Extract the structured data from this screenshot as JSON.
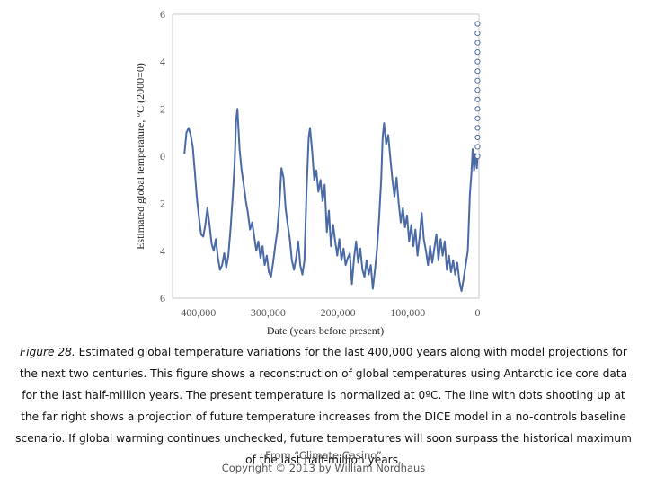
{
  "chart_data": {
    "type": "line",
    "title": "",
    "xlabel": "Date (years before present)",
    "ylabel": "Estimated global temperature, °C (2000=0)",
    "xlim": [
      -440000,
      5000
    ],
    "ylim": [
      -6,
      6
    ],
    "x_ticks": [
      -400000,
      -300000,
      -200000,
      -100000,
      0
    ],
    "x_tick_labels": [
      "400,000",
      "300,000",
      "200,000",
      "100,000",
      "0"
    ],
    "y_ticks": [
      6,
      4,
      2,
      0,
      -2,
      -4,
      -6
    ],
    "y_tick_labels": [
      "6",
      "4",
      "2",
      "0",
      "2",
      "4",
      "6"
    ],
    "grid": false,
    "legend": "none",
    "series": [
      {
        "style": "solid-line",
        "color": "#4a6aa5",
        "points": [
          [
            -420000,
            0.1
          ],
          [
            -417000,
            1.0
          ],
          [
            -414000,
            1.2
          ],
          [
            -411000,
            0.9
          ],
          [
            -408000,
            0.4
          ],
          [
            -405000,
            -0.7
          ],
          [
            -402000,
            -1.8
          ],
          [
            -399000,
            -2.6
          ],
          [
            -396000,
            -3.3
          ],
          [
            -393000,
            -3.4
          ],
          [
            -390000,
            -2.9
          ],
          [
            -387000,
            -2.2
          ],
          [
            -384000,
            -2.9
          ],
          [
            -381000,
            -3.7
          ],
          [
            -378000,
            -4.0
          ],
          [
            -375000,
            -3.5
          ],
          [
            -372000,
            -4.3
          ],
          [
            -369000,
            -4.8
          ],
          [
            -366000,
            -4.6
          ],
          [
            -363000,
            -4.1
          ],
          [
            -360000,
            -4.7
          ],
          [
            -357000,
            -4.2
          ],
          [
            -354000,
            -3.1
          ],
          [
            -351000,
            -1.8
          ],
          [
            -348000,
            -0.3
          ],
          [
            -346000,
            1.5
          ],
          [
            -344000,
            2.0
          ],
          [
            -341000,
            0.3
          ],
          [
            -338000,
            -0.6
          ],
          [
            -335000,
            -1.2
          ],
          [
            -332000,
            -1.9
          ],
          [
            -329000,
            -2.4
          ],
          [
            -326000,
            -3.1
          ],
          [
            -323000,
            -2.8
          ],
          [
            -320000,
            -3.4
          ],
          [
            -317000,
            -4.0
          ],
          [
            -314000,
            -3.6
          ],
          [
            -311000,
            -4.3
          ],
          [
            -308000,
            -3.8
          ],
          [
            -305000,
            -4.6
          ],
          [
            -302000,
            -4.2
          ],
          [
            -299000,
            -4.9
          ],
          [
            -296000,
            -5.1
          ],
          [
            -293000,
            -4.5
          ],
          [
            -290000,
            -3.8
          ],
          [
            -287000,
            -3.2
          ],
          [
            -284000,
            -2.1
          ],
          [
            -281000,
            -0.5
          ],
          [
            -278000,
            -0.9
          ],
          [
            -275000,
            -2.2
          ],
          [
            -272000,
            -2.9
          ],
          [
            -269000,
            -3.5
          ],
          [
            -266000,
            -4.4
          ],
          [
            -263000,
            -4.8
          ],
          [
            -260000,
            -4.3
          ],
          [
            -257000,
            -3.6
          ],
          [
            -254000,
            -4.6
          ],
          [
            -251000,
            -5.0
          ],
          [
            -248000,
            -4.4
          ],
          [
            -245000,
            -1.5
          ],
          [
            -242000,
            0.8
          ],
          [
            -240000,
            1.2
          ],
          [
            -237000,
            0.2
          ],
          [
            -234000,
            -1.0
          ],
          [
            -231000,
            -0.6
          ],
          [
            -228000,
            -1.5
          ],
          [
            -225000,
            -1.0
          ],
          [
            -222000,
            -1.9
          ],
          [
            -219000,
            -1.2
          ],
          [
            -216000,
            -3.2
          ],
          [
            -213000,
            -2.3
          ],
          [
            -210000,
            -3.8
          ],
          [
            -207000,
            -2.9
          ],
          [
            -204000,
            -3.6
          ],
          [
            -201000,
            -4.2
          ],
          [
            -198000,
            -3.5
          ],
          [
            -195000,
            -4.4
          ],
          [
            -192000,
            -3.9
          ],
          [
            -189000,
            -4.6
          ],
          [
            -186000,
            -4.3
          ],
          [
            -183000,
            -4.1
          ],
          [
            -180000,
            -5.4
          ],
          [
            -177000,
            -4.3
          ],
          [
            -174000,
            -3.6
          ],
          [
            -171000,
            -4.5
          ],
          [
            -168000,
            -3.9
          ],
          [
            -165000,
            -4.8
          ],
          [
            -162000,
            -5.1
          ],
          [
            -159000,
            -4.4
          ],
          [
            -156000,
            -5.0
          ],
          [
            -153000,
            -4.6
          ],
          [
            -150000,
            -5.6
          ],
          [
            -147000,
            -4.8
          ],
          [
            -144000,
            -3.9
          ],
          [
            -141000,
            -2.6
          ],
          [
            -138000,
            -0.9
          ],
          [
            -136000,
            0.8
          ],
          [
            -134000,
            1.4
          ],
          [
            -131000,
            0.5
          ],
          [
            -128000,
            0.9
          ],
          [
            -125000,
            -0.1
          ],
          [
            -122000,
            -1.0
          ],
          [
            -119000,
            -1.7
          ],
          [
            -116000,
            -0.9
          ],
          [
            -113000,
            -2.0
          ],
          [
            -110000,
            -2.8
          ],
          [
            -107000,
            -2.2
          ],
          [
            -104000,
            -3.0
          ],
          [
            -101000,
            -2.5
          ],
          [
            -98000,
            -3.6
          ],
          [
            -95000,
            -2.9
          ],
          [
            -92000,
            -3.8
          ],
          [
            -89000,
            -3.1
          ],
          [
            -86000,
            -4.2
          ],
          [
            -83000,
            -3.4
          ],
          [
            -80000,
            -2.4
          ],
          [
            -77000,
            -3.5
          ],
          [
            -74000,
            -4.0
          ],
          [
            -71000,
            -4.6
          ],
          [
            -68000,
            -3.8
          ],
          [
            -65000,
            -4.5
          ],
          [
            -62000,
            -3.9
          ],
          [
            -59000,
            -3.3
          ],
          [
            -56000,
            -4.4
          ],
          [
            -53000,
            -3.5
          ],
          [
            -50000,
            -4.2
          ],
          [
            -47000,
            -3.6
          ],
          [
            -44000,
            -4.8
          ],
          [
            -41000,
            -4.2
          ],
          [
            -38000,
            -4.9
          ],
          [
            -35000,
            -4.4
          ],
          [
            -32000,
            -5.0
          ],
          [
            -29000,
            -4.5
          ],
          [
            -26000,
            -5.3
          ],
          [
            -23000,
            -5.7
          ],
          [
            -20000,
            -5.2
          ],
          [
            -17000,
            -4.6
          ],
          [
            -14000,
            -4.0
          ],
          [
            -11000,
            -1.6
          ],
          [
            -9000,
            -0.8
          ],
          [
            -7000,
            0.3
          ],
          [
            -5000,
            -0.6
          ],
          [
            -3000,
            0.1
          ],
          [
            -1000,
            -0.5
          ],
          [
            0,
            0.0
          ]
        ]
      },
      {
        "style": "open-circle-markers",
        "color": "#4a6aa5",
        "points": [
          [
            0,
            0.0
          ],
          [
            0,
            0.4
          ],
          [
            0,
            0.8
          ],
          [
            0,
            1.2
          ],
          [
            0,
            1.6
          ],
          [
            0,
            2.0
          ],
          [
            0,
            2.4
          ],
          [
            0,
            2.8
          ],
          [
            0,
            3.2
          ],
          [
            0,
            3.6
          ],
          [
            0,
            4.0
          ],
          [
            0,
            4.4
          ],
          [
            0,
            4.8
          ],
          [
            0,
            5.2
          ],
          [
            0,
            5.6
          ]
        ]
      }
    ]
  },
  "caption": {
    "figure_label": "Figure 28.",
    "text": " Estimated global temperature variations for the last 400,000 years along with model projections for the next two centuries. This figure shows a reconstruction of global temperatures using Antarctic ice core data for the last half-million years. The present temperature is normalized at 0ºC. The line with dots shooting up at the far right shows a projection of future temperature increases from the DICE model in a no-controls baseline scenario. If global warming continues unchecked, future temperatures will soon surpass the historical maximum of the last half-million years."
  },
  "credit": {
    "line1": "From “Climate Casino”",
    "line2": "Copyright © 2013 by William Nordhaus"
  }
}
